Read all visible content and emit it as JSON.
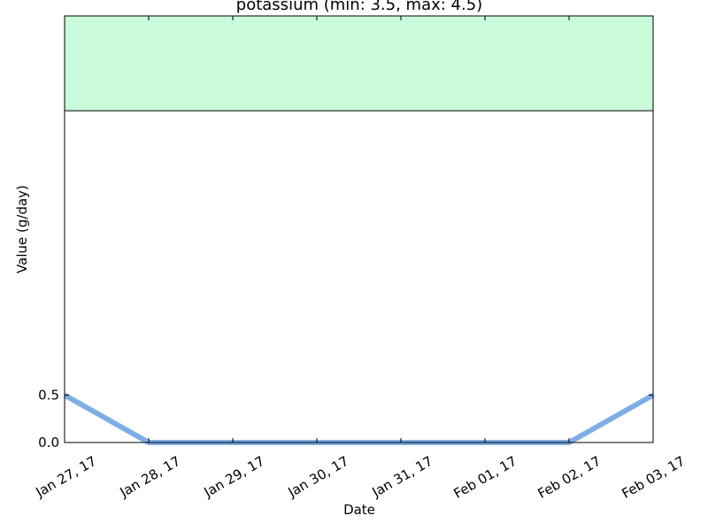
{
  "chart_data": {
    "type": "line",
    "title": "potassium (min: 3.5, max: 4.5)",
    "xlabel": "Date",
    "ylabel": "Value (g/day)",
    "x": [
      "2017-01-27",
      "2017-01-28",
      "2017-01-29",
      "2017-01-30",
      "2017-01-31",
      "2017-02-01",
      "2017-02-02",
      "2017-02-03"
    ],
    "xtick_labels": [
      "Jan 27, 17",
      "Jan 28, 17",
      "Jan 29, 17",
      "Jan 30, 17",
      "Jan 31, 17",
      "Feb 01, 17",
      "Feb 02, 17",
      "Feb 03, 17"
    ],
    "series": [
      {
        "values": [
          0.5,
          0.0,
          0.0,
          0.0,
          0.0,
          0.0,
          0.0,
          0.5
        ],
        "color": "#7eaee6"
      }
    ],
    "ylim": [
      0,
      4.5
    ],
    "yticks": [
      0.0,
      0.5
    ],
    "ytick_labels": [
      "0.0",
      "0.5"
    ],
    "reference_band": {
      "min": 3.5,
      "max": 4.5,
      "color": "#c8fcda"
    },
    "grid": false
  }
}
